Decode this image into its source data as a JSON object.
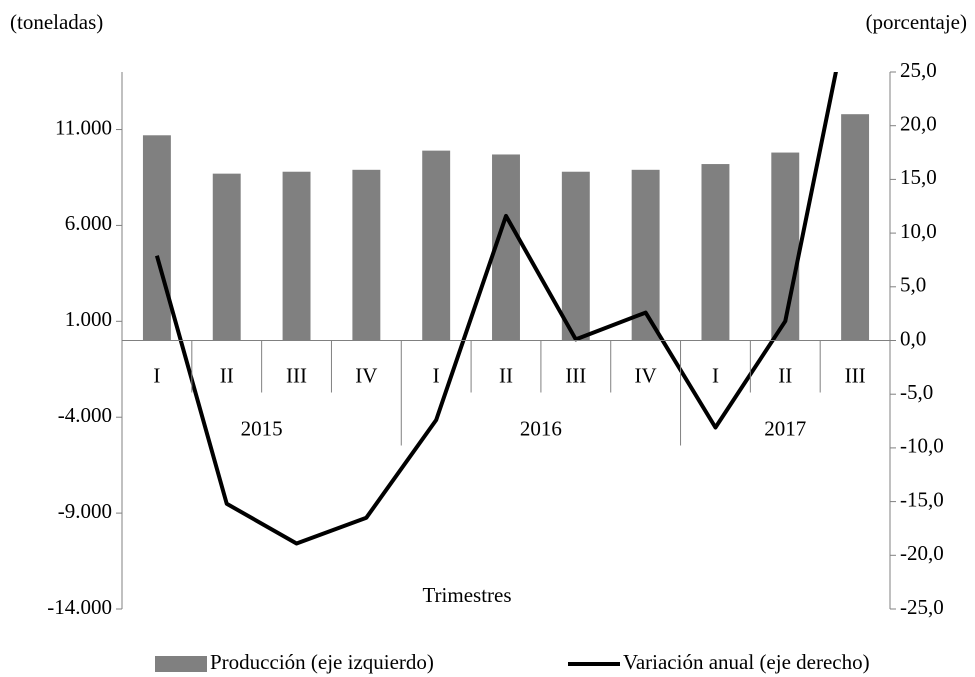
{
  "chart_data": {
    "type": "bar",
    "y_label": "(toneladas)",
    "y2_label": "(porcentaje)",
    "x_label": "Trimestres",
    "category_groups": [
      {
        "label": "2015",
        "categories": [
          "I",
          "II",
          "III",
          "IV"
        ]
      },
      {
        "label": "2016",
        "categories": [
          "I",
          "II",
          "III",
          "IV"
        ]
      },
      {
        "label": "2017",
        "categories": [
          "I",
          "II",
          "III"
        ]
      }
    ],
    "series": [
      {
        "name": "Producción (eje izquierdo)",
        "type": "bar",
        "axis": "y",
        "color": "#808080",
        "values": [
          10700,
          8700,
          8800,
          8900,
          9900,
          9700,
          8800,
          8900,
          9200,
          9800,
          11800
        ]
      },
      {
        "name": "Variación anual (eje derecho)",
        "type": "line",
        "axis": "y2",
        "color": "#000000",
        "values": [
          7.9,
          -15.2,
          -18.9,
          -16.5,
          -7.4,
          11.6,
          0.1,
          2.6,
          -8.1,
          1.8,
          33.8
        ]
      }
    ],
    "ylim": [
      -14000,
      14000
    ],
    "yticks": [
      {
        "value": -14000,
        "label": "-14.000"
      },
      {
        "value": -9000,
        "label": "-9.000"
      },
      {
        "value": -4000,
        "label": "-4.000"
      },
      {
        "value": 1000,
        "label": "1.000"
      },
      {
        "value": 6000,
        "label": "6.000"
      },
      {
        "value": 11000,
        "label": "11.000"
      }
    ],
    "y2lim": [
      -25,
      25
    ],
    "y2ticks": [
      {
        "value": -25,
        "label": "-25,0"
      },
      {
        "value": -20,
        "label": "-20,0"
      },
      {
        "value": -15,
        "label": "-15,0"
      },
      {
        "value": -10,
        "label": "-10,0"
      },
      {
        "value": -5,
        "label": "-5,0"
      },
      {
        "value": 0,
        "label": "0,0"
      },
      {
        "value": 5,
        "label": "5,0"
      },
      {
        "value": 10,
        "label": "10,0"
      },
      {
        "value": 15,
        "label": "15,0"
      },
      {
        "value": 20,
        "label": "20,0"
      },
      {
        "value": 25,
        "label": "25,0"
      }
    ],
    "grid": false
  }
}
